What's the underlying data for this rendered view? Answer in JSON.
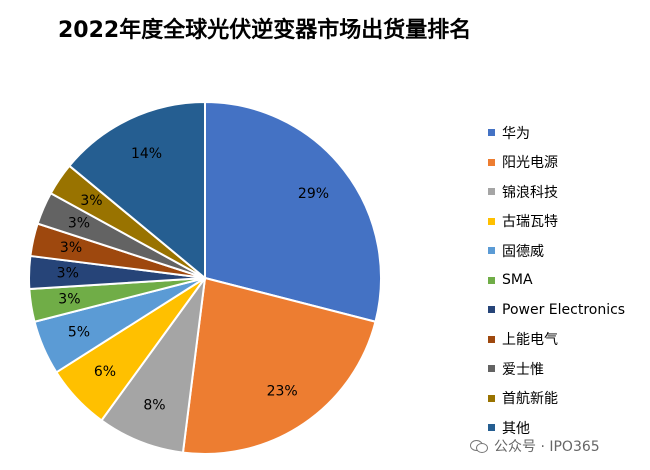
{
  "chart_data": {
    "type": "pie",
    "title": "2022年度全球光伏逆变器市场出货量排名",
    "unit": "%",
    "categories": [
      "华为",
      "阳光电源",
      "锦浪科技",
      "古瑞瓦特",
      "固德威",
      "SMA",
      "Power Electronics",
      "上能电气",
      "爱士惟",
      "首航新能",
      "其他"
    ],
    "values": [
      29,
      23,
      8,
      6,
      5,
      3,
      3,
      3,
      3,
      3,
      14
    ],
    "labels": [
      "29%",
      "23%",
      "8%",
      "6%",
      "5%",
      "3%",
      "3%",
      "3%",
      "3%",
      "3%",
      "14%"
    ],
    "colors": [
      "#4472C4",
      "#ED7D31",
      "#A5A5A5",
      "#FFC000",
      "#5B9BD5",
      "#70AD47",
      "#264478",
      "#9E480E",
      "#636363",
      "#997300",
      "#255E91"
    ],
    "legend_position": "right"
  },
  "watermark": {
    "icon": "wechat-icon",
    "text": "公众号 · IPO365"
  }
}
